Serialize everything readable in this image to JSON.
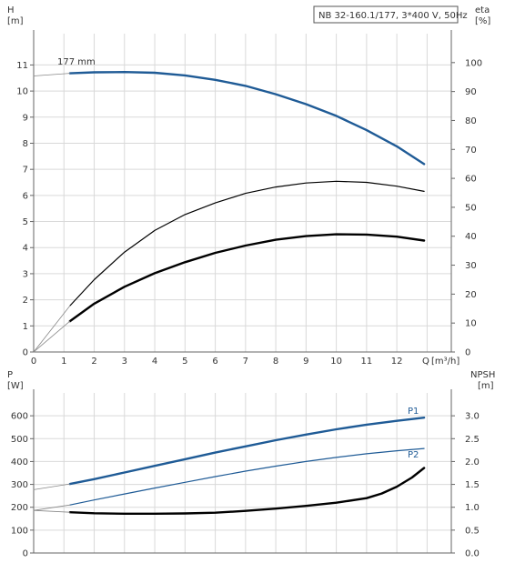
{
  "colors": {
    "curve_blue": "#1f5b96",
    "curve_black": "#000000",
    "grid": "#d9d9d9"
  },
  "top": {
    "title": "NB 32-160.1/177, 3*400 V, 50Hz",
    "curve_label": "177 mm",
    "y_left_name": "H",
    "y_left_unit": "[m]",
    "y_right_name": "eta",
    "y_right_unit": "[%]",
    "x_name": "Q",
    "x_unit": "[m³/h]",
    "x_ticks": [
      "0",
      "1",
      "2",
      "3",
      "4",
      "5",
      "6",
      "7",
      "8",
      "9",
      "10",
      "11",
      "12"
    ],
    "y_left_ticks": [
      "0",
      "1",
      "2",
      "3",
      "4",
      "5",
      "6",
      "7",
      "8",
      "9",
      "10",
      "11"
    ],
    "y_right_ticks": [
      "0",
      "10",
      "20",
      "30",
      "40",
      "50",
      "60",
      "70",
      "80",
      "90",
      "100"
    ]
  },
  "bottom": {
    "y_left_name": "P",
    "y_left_unit": "[W]",
    "y_right_name": "NPSH",
    "y_right_unit": "[m]",
    "y_left_ticks": [
      "0",
      "100",
      "200",
      "300",
      "400",
      "500",
      "600"
    ],
    "y_right_ticks": [
      "0.0",
      "0.5",
      "1.0",
      "1.5",
      "2.0",
      "2.5",
      "3.0"
    ],
    "label_p1": "P1",
    "label_p2": "P2"
  },
  "chart_data": [
    {
      "type": "line",
      "title": "NB 32-160.1/177, 3*400 V, 50Hz",
      "xlabel": "Q [m³/h]",
      "ylabel": "H [m]",
      "ylabel_right": "eta [%]",
      "xlim": [
        0,
        13.8
      ],
      "ylim": [
        0,
        12.2
      ],
      "ylim_right": [
        0,
        110
      ],
      "grid": true,
      "series": [
        {
          "name": "177 mm",
          "axis": "left",
          "color": "#1f5b96",
          "style": "thick",
          "x": [
            1.2,
            2,
            3,
            4,
            5,
            6,
            7,
            8,
            9,
            10,
            11,
            12,
            12.9
          ],
          "y": [
            10.68,
            10.72,
            10.73,
            10.7,
            10.6,
            10.43,
            10.2,
            9.88,
            9.5,
            9.05,
            8.5,
            7.88,
            7.2
          ]
        },
        {
          "axis": "left",
          "color": "#1f5b96",
          "style": "extrapolated",
          "x": [
            0,
            1.2
          ],
          "y": [
            10.58,
            10.68
          ]
        },
        {
          "axis": "right",
          "color": "#000000",
          "style": "thin",
          "x": [
            1.2,
            2,
            3,
            4,
            5,
            6,
            7,
            8,
            9,
            10,
            11,
            12,
            12.9
          ],
          "y": [
            16,
            25,
            34.5,
            42,
            47.5,
            51.5,
            54.8,
            57,
            58.4,
            59,
            58.6,
            57.3,
            55.5
          ]
        },
        {
          "axis": "right",
          "color": "#000000",
          "style": "extrapolated",
          "x": [
            0,
            1.2
          ],
          "y": [
            0,
            16
          ]
        },
        {
          "axis": "left",
          "color": "#000000",
          "style": "thick",
          "x": [
            1.2,
            2,
            3,
            4,
            5,
            6,
            7,
            8,
            9,
            10,
            11,
            12,
            12.9
          ],
          "y": [
            1.18,
            1.85,
            2.5,
            3.02,
            3.44,
            3.8,
            4.08,
            4.3,
            4.44,
            4.51,
            4.5,
            4.42,
            4.27
          ]
        },
        {
          "axis": "left",
          "color": "#000000",
          "style": "extrapolated",
          "x": [
            0,
            1.2
          ],
          "y": [
            0,
            1.18
          ]
        }
      ]
    },
    {
      "type": "line",
      "xlabel": "",
      "ylabel": "P [W]",
      "ylabel_right": "NPSH [m]",
      "xlim": [
        0,
        13.8
      ],
      "ylim": [
        0,
        700
      ],
      "ylim_right": [
        0,
        3.5
      ],
      "grid": true,
      "series": [
        {
          "name": "P1",
          "axis": "left",
          "color": "#1f5b96",
          "style": "thick",
          "x": [
            1.2,
            2,
            3,
            4,
            5,
            6,
            7,
            8,
            9,
            10,
            11,
            12,
            12.9
          ],
          "y": [
            302,
            323,
            352,
            381,
            410,
            439,
            466,
            493,
            518,
            541,
            561,
            578,
            592
          ]
        },
        {
          "axis": "left",
          "color": "#1f5b96",
          "style": "extrapolated",
          "x": [
            0,
            1.2
          ],
          "y": [
            277,
            302
          ]
        },
        {
          "name": "P2",
          "axis": "left",
          "color": "#1f5b96",
          "style": "thin",
          "x": [
            1.2,
            2,
            3,
            4,
            5,
            6,
            7,
            8,
            9,
            10,
            11,
            12,
            12.9
          ],
          "y": [
            210,
            232,
            258,
            284,
            309,
            334,
            358,
            380,
            400,
            418,
            434,
            447,
            457
          ]
        },
        {
          "axis": "left",
          "color": "#1f5b96",
          "style": "extrapolated",
          "x": [
            0,
            1.2
          ],
          "y": [
            186,
            210
          ]
        },
        {
          "axis": "right",
          "color": "#000000",
          "style": "thick",
          "x": [
            1.2,
            2,
            3,
            4,
            5,
            6,
            7,
            8,
            9,
            10,
            11,
            11.5,
            12,
            12.5,
            12.9
          ],
          "y": [
            0.89,
            0.87,
            0.86,
            0.86,
            0.865,
            0.88,
            0.92,
            0.97,
            1.03,
            1.1,
            1.2,
            1.3,
            1.45,
            1.65,
            1.86
          ]
        },
        {
          "axis": "right",
          "color": "#000000",
          "style": "extrapolated",
          "x": [
            0,
            1.2
          ],
          "y": [
            0.93,
            0.89
          ]
        }
      ]
    }
  ]
}
